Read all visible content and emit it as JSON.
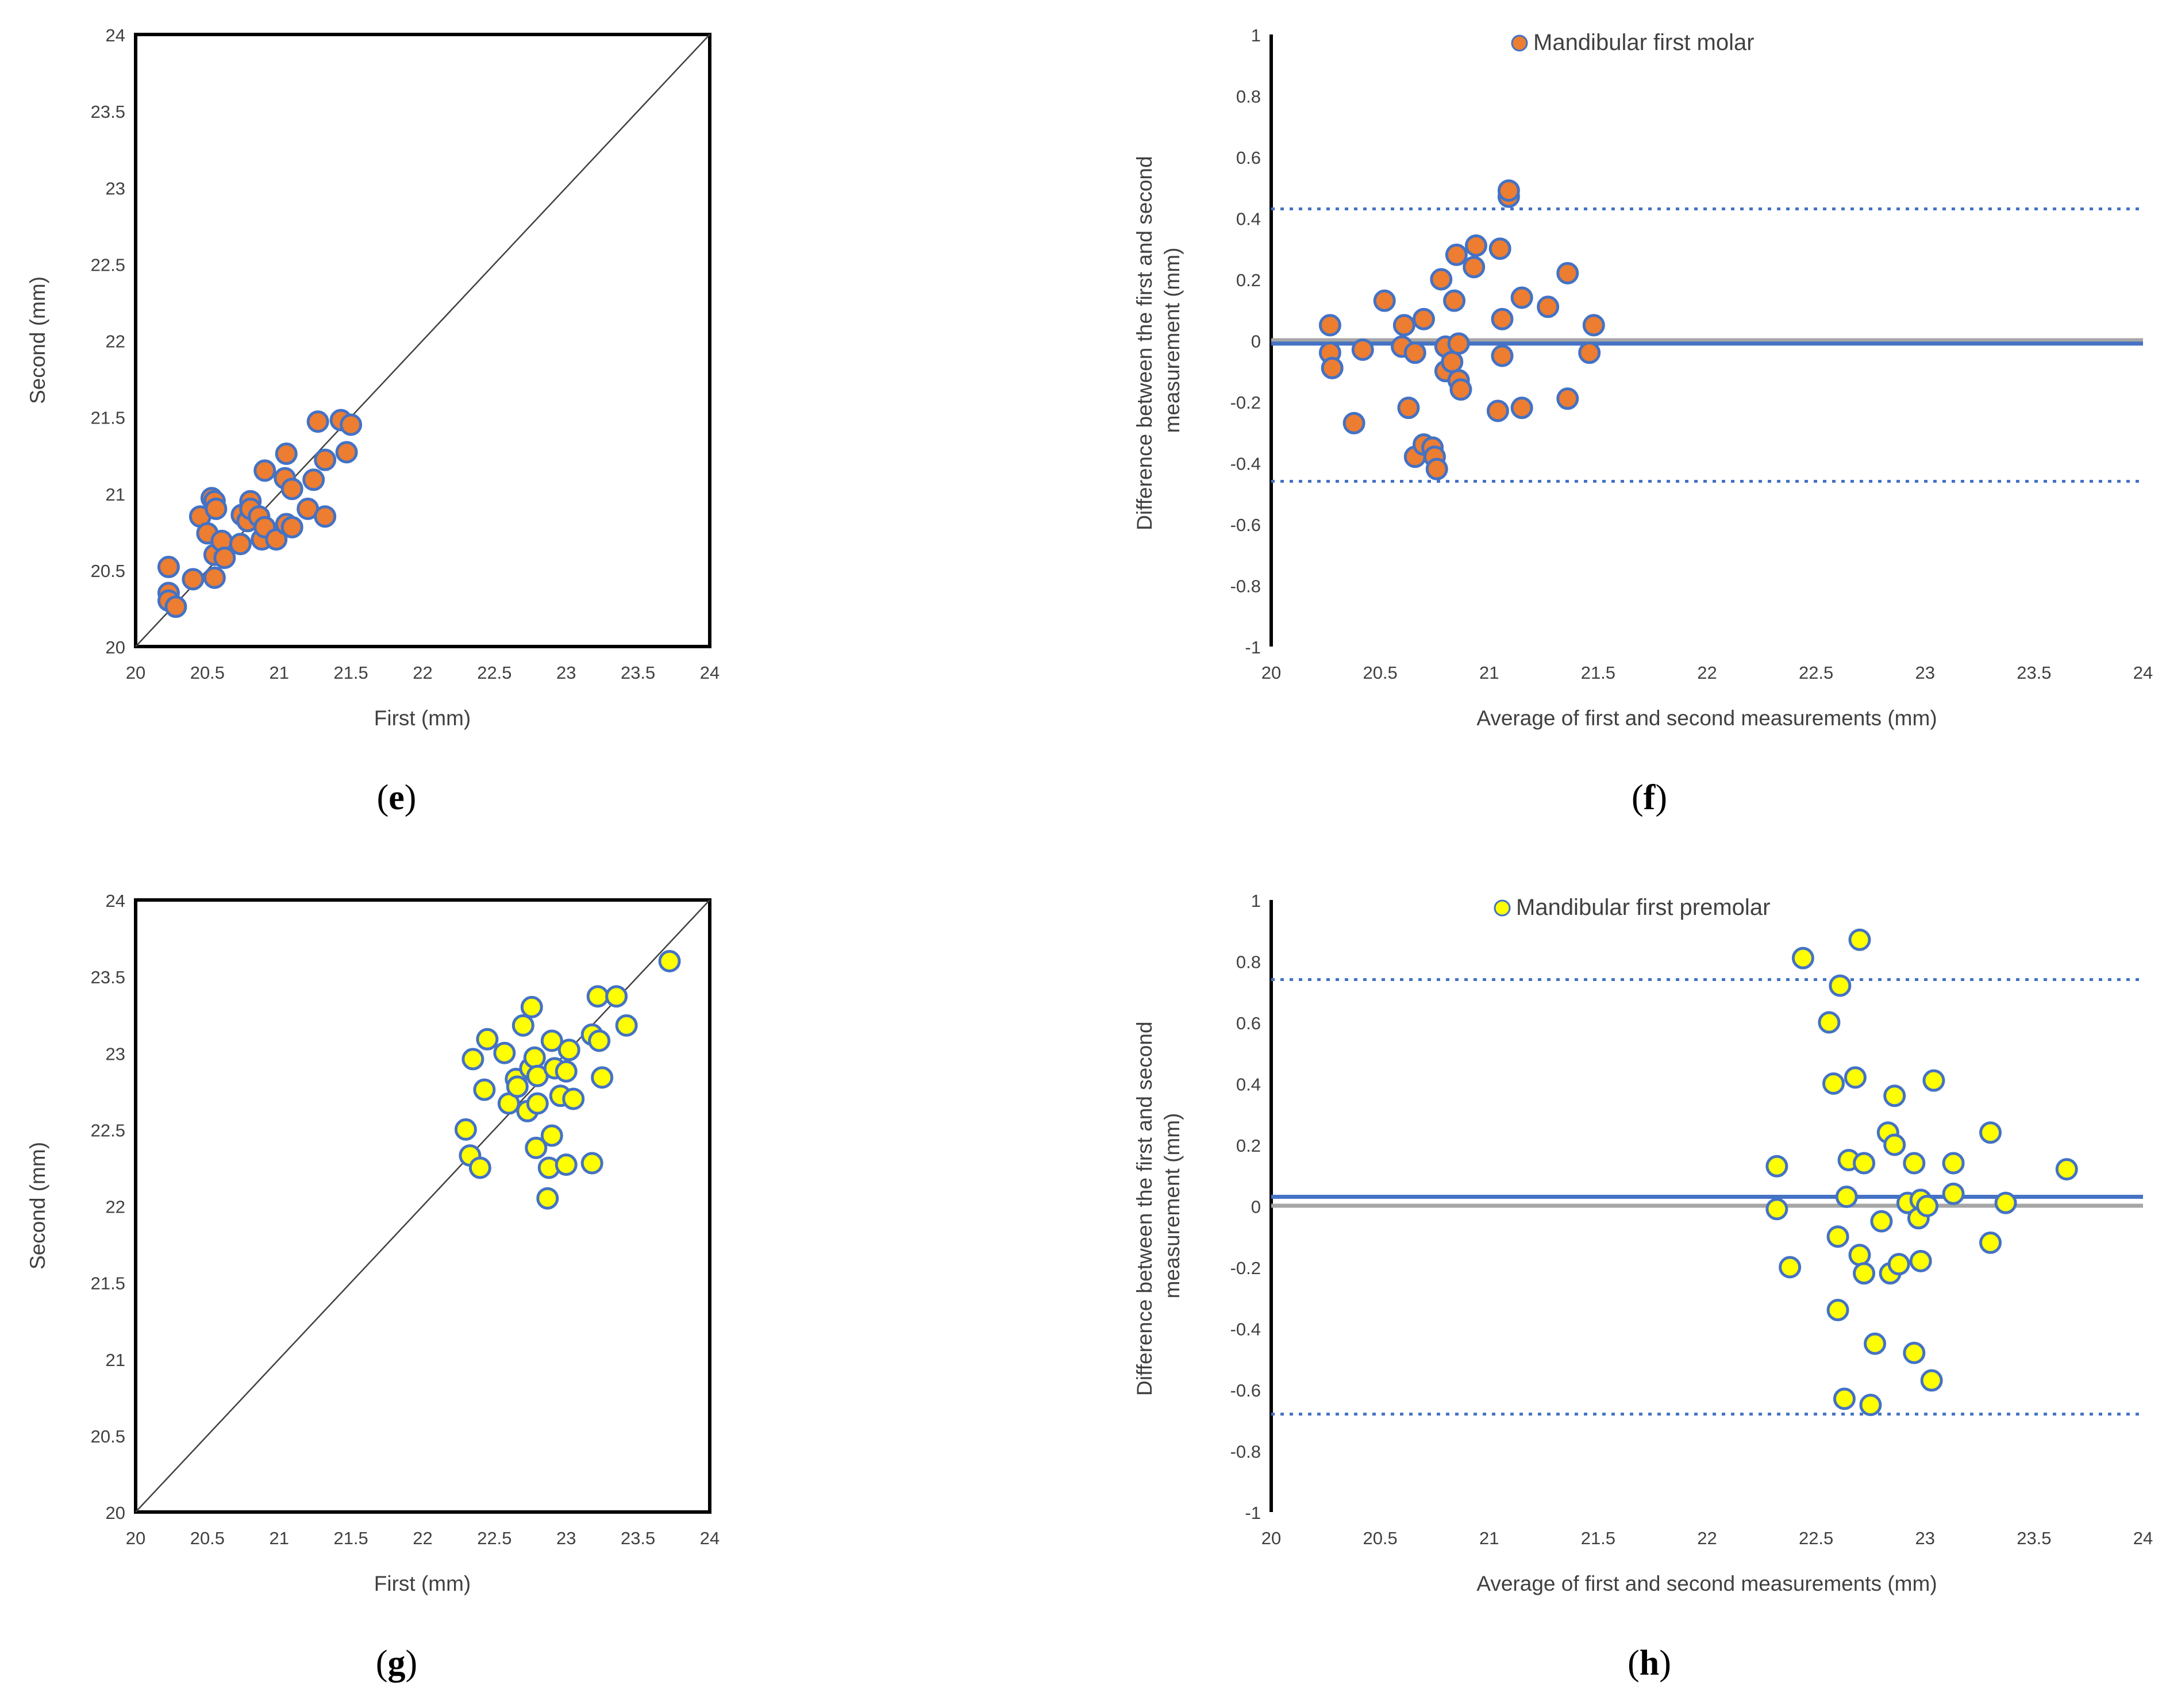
{
  "panels": [
    {
      "id": "e",
      "label": "e",
      "chart_data": {
        "type": "scatter",
        "xlabel": "First (mm)",
        "ylabel": "Second (mm)",
        "xlim": [
          20,
          24
        ],
        "ylim": [
          20,
          24
        ],
        "xticks": [
          "20",
          "20.5",
          "21",
          "21.5",
          "22",
          "22.5",
          "23",
          "23.5",
          "24"
        ],
        "yticks": [
          "20",
          "20.5",
          "21",
          "21.5",
          "22",
          "22.5",
          "23",
          "23.5",
          "24"
        ],
        "reference_line": "identity",
        "marker_color": "#ED7D31",
        "marker_edge": "#4472C4",
        "points": [
          [
            20.23,
            20.52
          ],
          [
            20.23,
            20.35
          ],
          [
            20.23,
            20.3
          ],
          [
            20.28,
            20.26
          ],
          [
            20.4,
            20.44
          ],
          [
            20.45,
            20.85
          ],
          [
            20.5,
            20.74
          ],
          [
            20.53,
            20.97
          ],
          [
            20.55,
            20.95
          ],
          [
            20.56,
            20.9
          ],
          [
            20.55,
            20.6
          ],
          [
            20.55,
            20.45
          ],
          [
            20.6,
            20.69
          ],
          [
            20.62,
            20.58
          ],
          [
            20.73,
            20.67
          ],
          [
            20.74,
            20.86
          ],
          [
            20.78,
            20.82
          ],
          [
            20.8,
            20.95
          ],
          [
            20.8,
            20.9
          ],
          [
            20.86,
            20.85
          ],
          [
            20.88,
            20.7
          ],
          [
            20.9,
            20.78
          ],
          [
            20.9,
            21.15
          ],
          [
            20.98,
            20.7
          ],
          [
            21.04,
            21.1
          ],
          [
            21.05,
            21.26
          ],
          [
            21.05,
            20.8
          ],
          [
            21.09,
            21.03
          ],
          [
            21.09,
            20.78
          ],
          [
            21.2,
            20.9
          ],
          [
            21.24,
            21.09
          ],
          [
            21.27,
            21.47
          ],
          [
            21.32,
            21.22
          ],
          [
            21.32,
            20.85
          ],
          [
            21.43,
            21.48
          ],
          [
            21.47,
            21.27
          ],
          [
            21.5,
            21.45
          ]
        ]
      }
    },
    {
      "id": "f",
      "label": "f",
      "chart_data": {
        "type": "scatter",
        "xlabel": "Average of first and second measurements (mm)",
        "ylabel_lines": [
          "Difference between the first and second",
          "measurement (mm)"
        ],
        "xlim": [
          20,
          24
        ],
        "ylim": [
          -1,
          1
        ],
        "xticks": [
          "20",
          "20.5",
          "21",
          "21.5",
          "22",
          "22.5",
          "23",
          "23.5",
          "24"
        ],
        "yticks": [
          "-1",
          "-0.8",
          "-0.6",
          "-0.4",
          "-0.2",
          "0",
          "0.2",
          "0.4",
          "0.6",
          "0.8",
          "1"
        ],
        "legend": {
          "name": "Mandibular first molar",
          "position": "top"
        },
        "mean_line": -0.01,
        "upper_loa": 0.43,
        "lower_loa": -0.46,
        "marker_color": "#ED7D31",
        "marker_edge": "#4472C4",
        "points": [
          [
            20.27,
            0.05
          ],
          [
            20.27,
            -0.04
          ],
          [
            20.28,
            -0.09
          ],
          [
            20.38,
            -0.27
          ],
          [
            20.42,
            -0.03
          ],
          [
            20.52,
            0.13
          ],
          [
            20.6,
            -0.02
          ],
          [
            20.61,
            0.05
          ],
          [
            20.63,
            -0.22
          ],
          [
            20.66,
            -0.04
          ],
          [
            20.66,
            -0.38
          ],
          [
            20.7,
            0.07
          ],
          [
            20.7,
            -0.34
          ],
          [
            20.74,
            -0.35
          ],
          [
            20.75,
            -0.38
          ],
          [
            20.76,
            -0.42
          ],
          [
            20.78,
            0.2
          ],
          [
            20.8,
            -0.02
          ],
          [
            20.8,
            -0.1
          ],
          [
            20.83,
            -0.07
          ],
          [
            20.84,
            0.13
          ],
          [
            20.85,
            0.28
          ],
          [
            20.86,
            -0.01
          ],
          [
            20.86,
            -0.13
          ],
          [
            20.87,
            -0.16
          ],
          [
            20.93,
            0.24
          ],
          [
            20.94,
            0.31
          ],
          [
            21.04,
            -0.23
          ],
          [
            21.05,
            0.3
          ],
          [
            21.06,
            0.07
          ],
          [
            21.06,
            -0.05
          ],
          [
            21.09,
            0.47
          ],
          [
            21.09,
            0.49
          ],
          [
            21.15,
            -0.22
          ],
          [
            21.15,
            0.14
          ],
          [
            21.27,
            0.11
          ],
          [
            21.36,
            0.22
          ],
          [
            21.36,
            -0.19
          ],
          [
            21.46,
            -0.04
          ],
          [
            21.48,
            0.05
          ]
        ]
      }
    },
    {
      "id": "g",
      "label": "g",
      "chart_data": {
        "type": "scatter",
        "xlabel": "First (mm)",
        "ylabel": "Second (mm)",
        "xlim": [
          20,
          24
        ],
        "ylim": [
          20,
          24
        ],
        "xticks": [
          "20",
          "20.5",
          "21",
          "21.5",
          "22",
          "22.5",
          "23",
          "23.5",
          "24"
        ],
        "yticks": [
          "20",
          "20.5",
          "21",
          "21.5",
          "22",
          "22.5",
          "23",
          "23.5",
          "24"
        ],
        "reference_line": "identity",
        "marker_color": "#FFFF00",
        "marker_edge": "#4472C4",
        "points": [
          [
            22.3,
            22.5
          ],
          [
            22.33,
            22.33
          ],
          [
            22.35,
            22.96
          ],
          [
            22.4,
            22.25
          ],
          [
            22.43,
            22.76
          ],
          [
            22.45,
            23.09
          ],
          [
            22.57,
            23.0
          ],
          [
            22.6,
            22.67
          ],
          [
            22.65,
            22.83
          ],
          [
            22.66,
            22.78
          ],
          [
            22.7,
            23.18
          ],
          [
            22.73,
            22.62
          ],
          [
            22.75,
            22.9
          ],
          [
            22.76,
            23.3
          ],
          [
            22.78,
            22.97
          ],
          [
            22.8,
            22.85
          ],
          [
            22.79,
            22.38
          ],
          [
            22.8,
            22.67
          ],
          [
            22.88,
            22.25
          ],
          [
            22.87,
            22.05
          ],
          [
            22.9,
            23.08
          ],
          [
            22.9,
            22.46
          ],
          [
            22.92,
            22.9
          ],
          [
            22.96,
            22.72
          ],
          [
            23.0,
            22.27
          ],
          [
            23.0,
            22.88
          ],
          [
            23.02,
            23.02
          ],
          [
            23.05,
            22.7
          ],
          [
            23.18,
            23.12
          ],
          [
            23.18,
            22.28
          ],
          [
            23.22,
            23.37
          ],
          [
            23.23,
            23.08
          ],
          [
            23.25,
            22.84
          ],
          [
            23.35,
            23.37
          ],
          [
            23.42,
            23.18
          ],
          [
            23.72,
            23.6
          ]
        ]
      }
    },
    {
      "id": "h",
      "label": "h",
      "chart_data": {
        "type": "scatter",
        "xlabel": "Average of first and second measurements (mm)",
        "ylabel_lines": [
          "Difference between the first and second",
          "measurement (mm)"
        ],
        "xlim": [
          20,
          24
        ],
        "ylim": [
          -1,
          1
        ],
        "xticks": [
          "20",
          "20.5",
          "21",
          "21.5",
          "22",
          "22.5",
          "23",
          "23.5",
          "24"
        ],
        "yticks": [
          "-1",
          "-0.8",
          "-0.6",
          "-0.4",
          "-0.2",
          "0",
          "0.2",
          "0.4",
          "0.6",
          "0.8",
          "1"
        ],
        "legend": {
          "name": "Mandibular first premolar",
          "position": "top"
        },
        "mean_line": 0.03,
        "upper_loa": 0.74,
        "lower_loa": -0.68,
        "marker_color": "#FFFF00",
        "marker_edge": "#4472C4",
        "points": [
          [
            22.32,
            0.13
          ],
          [
            22.32,
            -0.01
          ],
          [
            22.38,
            -0.2
          ],
          [
            22.44,
            0.81
          ],
          [
            22.56,
            0.6
          ],
          [
            22.58,
            0.4
          ],
          [
            22.6,
            -0.1
          ],
          [
            22.6,
            -0.34
          ],
          [
            22.61,
            0.72
          ],
          [
            22.63,
            -0.63
          ],
          [
            22.64,
            0.03
          ],
          [
            22.65,
            0.15
          ],
          [
            22.68,
            0.42
          ],
          [
            22.7,
            0.87
          ],
          [
            22.7,
            -0.16
          ],
          [
            22.72,
            0.14
          ],
          [
            22.72,
            -0.22
          ],
          [
            22.75,
            -0.65
          ],
          [
            22.77,
            -0.45
          ],
          [
            22.8,
            -0.05
          ],
          [
            22.83,
            0.24
          ],
          [
            22.84,
            -0.22
          ],
          [
            22.86,
            0.2
          ],
          [
            22.86,
            0.36
          ],
          [
            22.88,
            -0.19
          ],
          [
            22.92,
            0.01
          ],
          [
            22.95,
            0.14
          ],
          [
            22.95,
            -0.48
          ],
          [
            22.97,
            -0.04
          ],
          [
            22.98,
            -0.18
          ],
          [
            22.98,
            0.02
          ],
          [
            23.01,
            0.0
          ],
          [
            23.03,
            -0.57
          ],
          [
            23.04,
            0.41
          ],
          [
            23.13,
            0.14
          ],
          [
            23.13,
            0.04
          ],
          [
            23.3,
            0.24
          ],
          [
            23.3,
            -0.12
          ],
          [
            23.37,
            0.01
          ],
          [
            23.65,
            0.12
          ]
        ]
      }
    }
  ]
}
